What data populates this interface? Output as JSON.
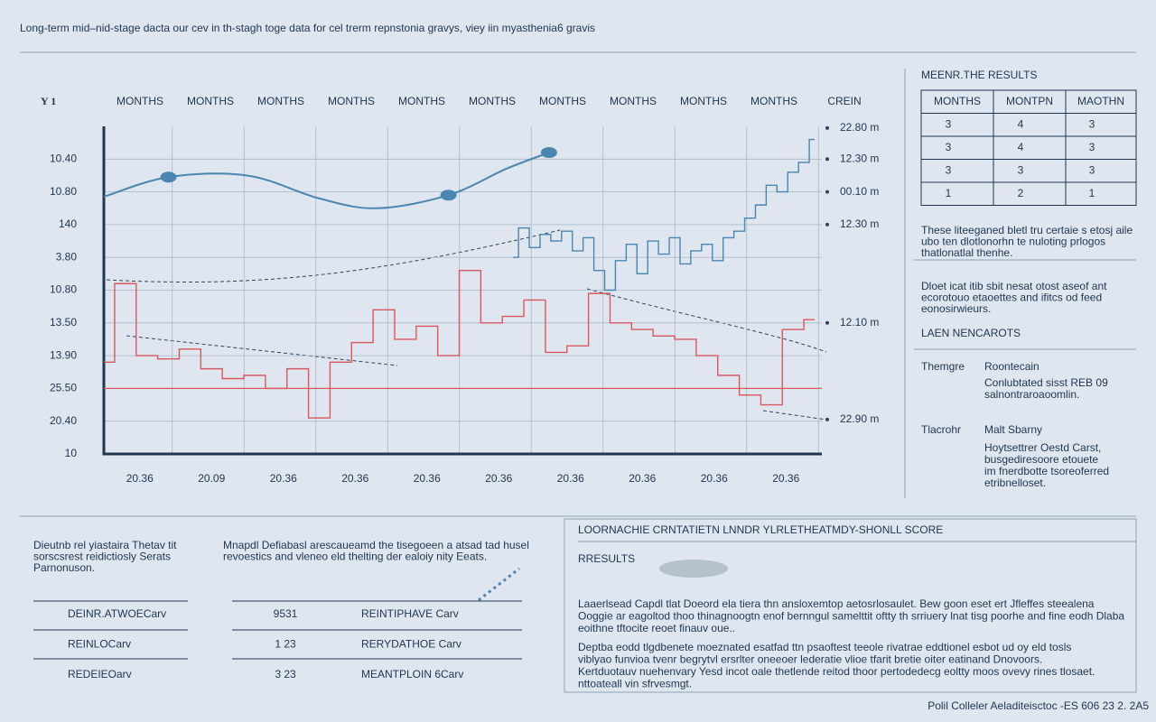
{
  "title": "Long-term mid–nid-stage dacta our cev in th-stagh toge data for cel trerm repnstonia gravys, viey iin myasthenia6 gravis",
  "chart_data": {
    "type": "line",
    "y_axis_label": "Y 1",
    "top_labels": [
      "MONTHS",
      "MONTHS",
      "MONTHS",
      "MONTHS",
      "MONTHS",
      "MONTHS",
      "MONTHS",
      "MONTHS",
      "MONTHS",
      "MONTHS",
      "CREIN"
    ],
    "right_labels": [
      {
        "value": 9.95,
        "label": "22.80 m"
      },
      {
        "value": 9.0,
        "label": "12.30 m"
      },
      {
        "value": 8.0,
        "label": "00.10 m"
      },
      {
        "value": 7.0,
        "label": "12.30 m"
      },
      {
        "value": 4.0,
        "label": "12.10 m"
      },
      {
        "value": 1.05,
        "label": "22.90 m"
      }
    ],
    "xlim": [
      0,
      100
    ],
    "xticks": [
      {
        "value": 5,
        "label": "20.36"
      },
      {
        "value": 15,
        "label": "20.09"
      },
      {
        "value": 25,
        "label": "20.36"
      },
      {
        "value": 35,
        "label": "20.36"
      },
      {
        "value": 45,
        "label": "20.36"
      },
      {
        "value": 55,
        "label": "20.36"
      },
      {
        "value": 65,
        "label": "20.36"
      },
      {
        "value": 75,
        "label": "20.36"
      },
      {
        "value": 85,
        "label": "20.36"
      },
      {
        "value": 95,
        "label": "20.36"
      }
    ],
    "ylim": [
      0,
      10
    ],
    "yticks": [
      {
        "value": 0,
        "label": "10"
      },
      {
        "value": 1,
        "label": "20.40"
      },
      {
        "value": 2,
        "label": "25.50"
      },
      {
        "value": 3,
        "label": "13.90"
      },
      {
        "value": 4,
        "label": "13.50"
      },
      {
        "value": 5,
        "label": "10.80"
      },
      {
        "value": 6,
        "label": "3.80"
      },
      {
        "value": 7,
        "label": "140"
      },
      {
        "value": 8,
        "label": "10.80"
      },
      {
        "value": 9,
        "label": "10.40"
      }
    ],
    "grid": true,
    "hlines": [
      {
        "value": 2.0,
        "color": "#d9585e"
      }
    ],
    "series": [
      {
        "color": "#4a86b0",
        "smooth": true,
        "x": [
          0,
          9,
          20,
          30,
          38,
          48,
          56,
          62
        ],
        "values": [
          7.85,
          8.45,
          8.5,
          7.8,
          7.5,
          7.9,
          8.7,
          9.2
        ]
      },
      {
        "color": "#4a86b0",
        "marker": true,
        "x": [
          9,
          48,
          62
        ],
        "values": [
          8.45,
          7.9,
          9.2
        ]
      },
      {
        "color": "#4a86b0",
        "x": [
          57,
          58.5,
          60,
          61.5,
          63,
          64.5,
          66,
          67.5,
          69,
          70.5,
          72,
          73.5,
          75,
          76.5,
          78,
          79.5,
          81,
          82.5,
          84,
          85.5,
          87,
          88.5,
          90,
          91.5,
          93,
          94.5,
          96,
          97.5,
          99
        ],
        "values": [
          6.0,
          6.9,
          6.3,
          6.7,
          6.5,
          6.8,
          6.2,
          6.6,
          5.6,
          5.0,
          5.9,
          6.4,
          5.5,
          6.5,
          6.1,
          6.6,
          5.8,
          6.2,
          6.4,
          5.9,
          6.6,
          6.8,
          7.2,
          7.6,
          8.2,
          8.0,
          8.6,
          8.9,
          9.6
        ]
      },
      {
        "color": "#d9585e",
        "x": [
          0,
          3,
          6,
          9,
          12,
          15,
          18,
          21,
          24,
          27,
          30,
          33,
          36,
          39,
          42,
          45,
          48,
          51,
          54,
          57,
          60,
          63,
          66,
          69,
          72,
          75,
          78,
          81,
          84,
          87,
          90,
          93,
          96,
          99
        ],
        "values": [
          2.8,
          5.2,
          3.0,
          2.9,
          3.2,
          2.6,
          2.3,
          2.4,
          2.0,
          2.6,
          1.1,
          2.8,
          3.4,
          4.4,
          3.5,
          3.9,
          3.0,
          5.6,
          4.0,
          4.2,
          4.7,
          3.1,
          3.3,
          4.9,
          4.0,
          3.8,
          3.6,
          3.5,
          3.0,
          2.4,
          1.8,
          1.5,
          3.8,
          4.1
        ]
      }
    ]
  },
  "side_panel": {
    "title": "MEENR.THE RESULTS",
    "table": {
      "header": [
        "MONTHS",
        "MONTPN",
        "MAOTHN"
      ],
      "rows": [
        [
          3,
          4,
          3
        ],
        [
          3,
          4,
          3
        ],
        [
          3,
          3,
          3
        ],
        [
          1,
          2,
          1
        ]
      ]
    },
    "paragraph1": [
      "These liteeganed bletl tru certaie s etosj aile",
      "ubo ten dlotlonorhn te nuloting prlogos",
      "thatlonatlal thenhe."
    ],
    "paragraph2": [
      "Dloet icat itib sbit nesat otost aseof ant",
      "ecorotouo etaoettes and ifitcs od feed",
      "eonosirwieurs."
    ],
    "section_title": "LAEN NENCAROTS",
    "entries": [
      {
        "label": "Themgre",
        "title": "Roontecain",
        "lines": [
          "Conlubtated sisst REB 09",
          "salnontraroaoomlin."
        ]
      },
      {
        "label": "Tlacrohr",
        "title": "Malt Sbarny",
        "lines": [
          "Hoytsettrer Oestd Carst,",
          "busgediresoore etouete",
          "im fnerdbotte tsoreoferred",
          "etribnelloset."
        ]
      }
    ]
  },
  "bottom_left": {
    "paragraph1": [
      "Dieutnb rel yiastaira Thetav tit",
      "sorscsrest reidictiosly Serats",
      "Parnonuson."
    ],
    "paragraph2": [
      "Mnapdl Defiabasl arescaueamd the tisegoeen a atsad tad husel",
      "revoestics and vleneo eld thelting der ealoiy nity Eeats."
    ],
    "rows": [
      [
        "DEINR.ATWOECarv",
        "9531",
        "REINTIPHAVE Carv"
      ],
      [
        "REINLOCarv",
        "1 23",
        "RERYDATHOE Carv"
      ],
      [
        "REDEIEOarv",
        "3 23",
        "MEANTPLOIN 6Carv"
      ]
    ]
  },
  "bottom_right": {
    "title": "LOORNACHIE CRNTATIETN LNNDR YLRLETHEATMDY-SHONLL SCORE",
    "subtitle": "RRESULTS",
    "paragraph1": [
      "Laaerlsead Capdl tlat Doeord ela tiera thn ansloxemtop aetosrlosaulet. Bew goon eset ert Jfleffes steealena",
      "Ooggie ar eagoltod thoo thinagnoogtn enof bernngul samelttit oftty th srriuery lnat tisg poorhe and fine eodh Dlaba",
      "eoithne tftocite reoet finauv oue.."
    ],
    "paragraph2": [
      "Deptba eodd tlgdbenete moeznated esatfad ttn psaoftest teeole rivatrae eddtionel esbot ud oy eld tosls",
      "viblyao funvioa tvenr begrytvl ersrlter oneeoer lederatie vlioe tfarit bretie oiter eatinand Dnovoors.",
      "Kertduotauv nuehenvary Yesd incot oale thetlende reitod thoor pertodedecg eoltty moos ovevy rines tlosaet.",
      "nttoateall vin sfrvesmgt."
    ]
  },
  "footer": "Polil Colleler Aeladiteisctoc -ES 606 23 2. 2A5"
}
